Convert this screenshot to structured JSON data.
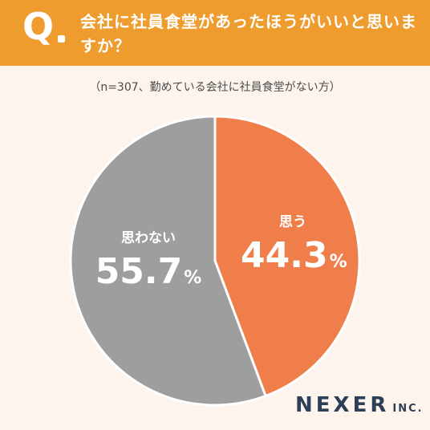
{
  "question": {
    "mark": "Q",
    "text": "会社に社員食堂があったほうがいいと思いますか？"
  },
  "subtitle": "（n=307、勤めている会社に社員食堂がない方）",
  "chart_data": {
    "type": "pie",
    "title": "会社に社員食堂があったほうがいいと思いますか？",
    "subtitle": "（n=307、勤めている会社に社員食堂がない方）",
    "categories": [
      "思う",
      "思わない"
    ],
    "values": [
      44.3,
      55.7
    ],
    "unit": "%",
    "colors": [
      "#f07e4a",
      "#9e9e9e"
    ],
    "labels": [
      {
        "category": "思う",
        "value": "44.3",
        "unit": "%"
      },
      {
        "category": "思わない",
        "value": "55.7",
        "unit": "%"
      }
    ]
  },
  "logo": {
    "main": "NEXER",
    "suffix": "INC."
  }
}
